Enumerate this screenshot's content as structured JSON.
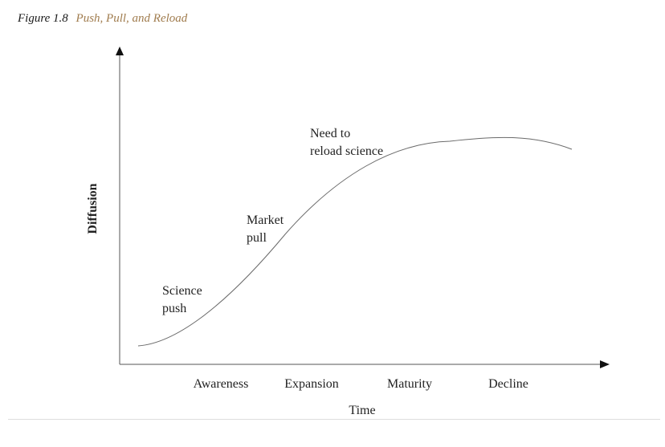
{
  "figure": {
    "number": "Figure 1.8",
    "title": "Push, Pull, and Reload"
  },
  "axes": {
    "x_title": "Time",
    "y_title": "Diffusion"
  },
  "stages": [
    "Awareness",
    "Expansion",
    "Maturity",
    "Decline"
  ],
  "annotations": {
    "science_push": [
      "Science",
      "push"
    ],
    "market_pull": [
      "Market",
      "pull"
    ],
    "reload_science": [
      "Need to",
      "reload science"
    ]
  },
  "colors": {
    "title_accent": "#a07c4e",
    "curve": "#6a6a6a",
    "axis": "#555555"
  }
}
